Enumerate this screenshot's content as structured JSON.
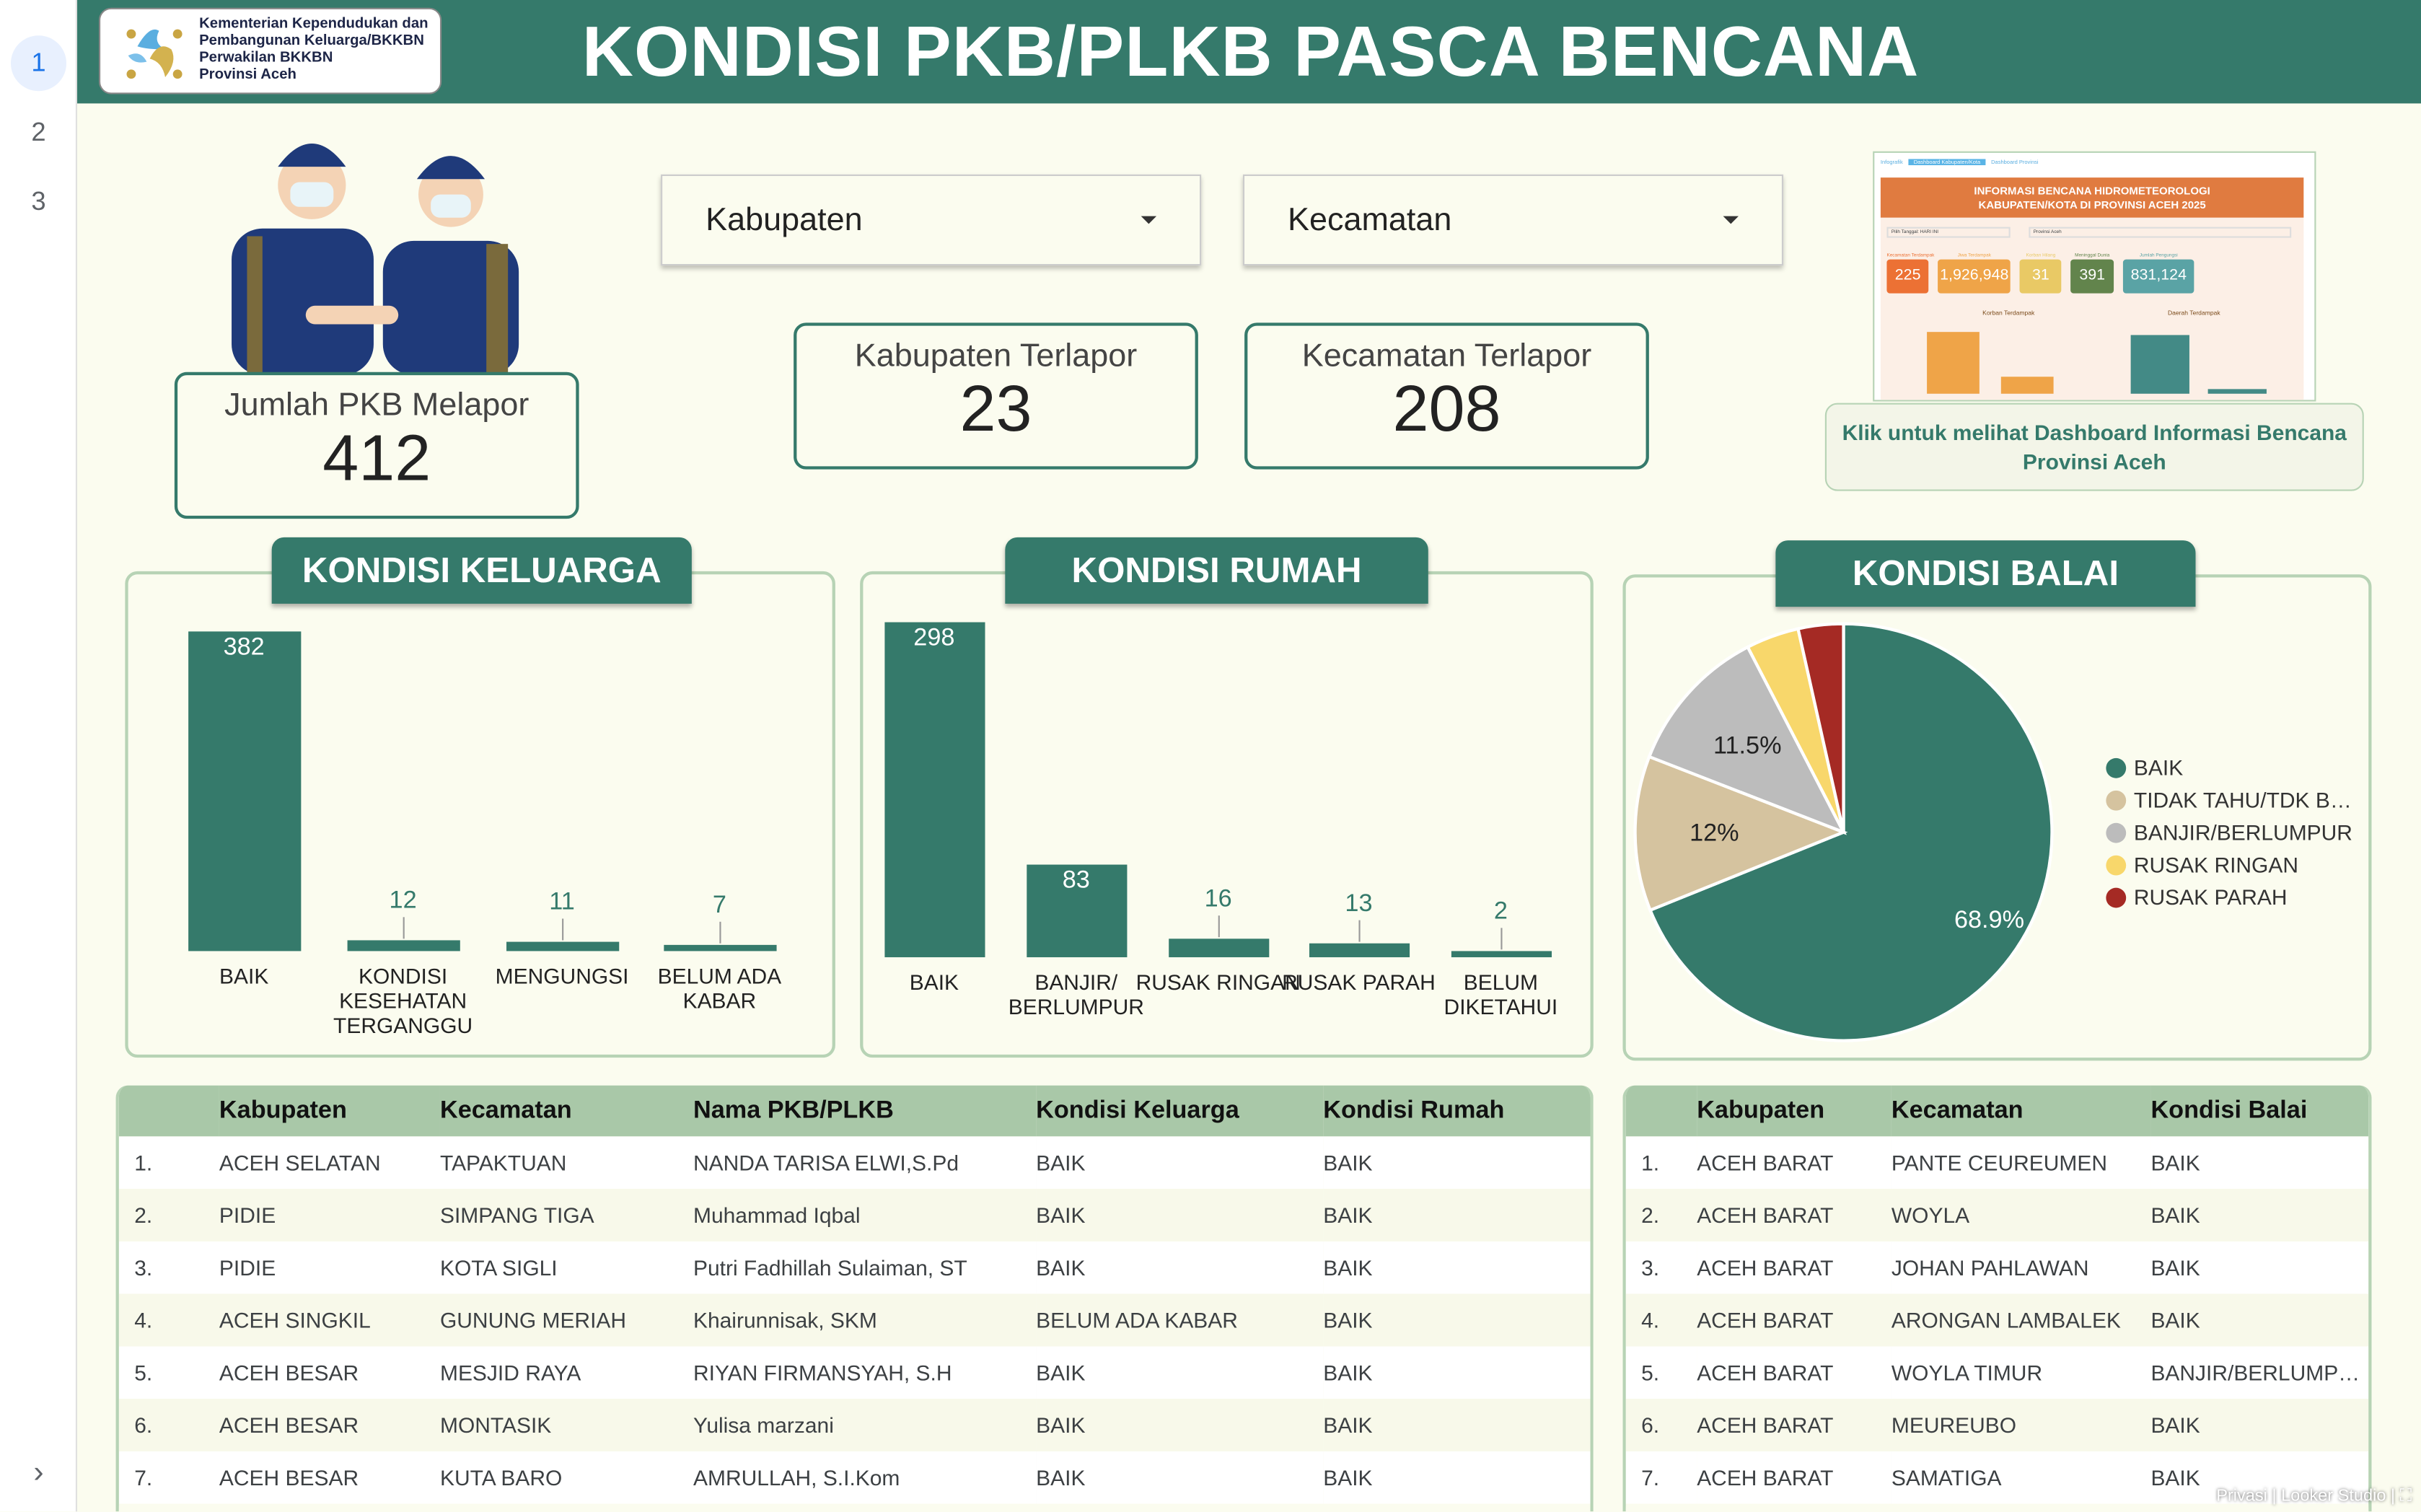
{
  "nav": {
    "pages": [
      "1",
      "2",
      "3"
    ],
    "active": "1",
    "next_icon": "chevron-right-icon"
  },
  "header": {
    "logo_text": [
      "Kementerian Kependudukan dan",
      "Pembangunan Keluarga/BKKBN",
      "Perwakilan BKKBN",
      "Provinsi Aceh"
    ],
    "title": "KONDISI PKB/PLKB PASCA BENCANA"
  },
  "filters": {
    "kabupaten": "Kabupaten",
    "kecamatan": "Kecamatan"
  },
  "stats": {
    "pkb": {
      "label": "Jumlah PKB Melapor",
      "value": "412"
    },
    "kab": {
      "label": "Kabupaten Terlapor",
      "value": "23"
    },
    "kec": {
      "label": "Kecamatan Terlapor",
      "value": "208"
    }
  },
  "thumbnail": {
    "tabs": [
      "Infografik",
      "Dashboard Kabupaten/Kota",
      "Dashboard Provinsi"
    ],
    "title1": "INFORMASI BENCANA HIDROMETEOROLOGI",
    "title2": "KABUPATEN/KOTA DI PROVINSI ACEH 2025",
    "filter1": "Pilih Tanggal: HARI INI",
    "filter2": "Provinsi Aceh",
    "kpis": [
      {
        "label": "Kecamatan Terdampak",
        "value": "225",
        "color": "#ec7134"
      },
      {
        "label": "Jiwa Terdampak",
        "value": "1,926,948",
        "color": "#efa448"
      },
      {
        "label": "Korban Hilang",
        "value": "31",
        "color": "#e9c965"
      },
      {
        "label": "Meninggal Dunia",
        "value": "391",
        "color": "#62844c"
      },
      {
        "label": "Jumlah Pengungsi",
        "value": "831,124",
        "color": "#5aa3a5"
      }
    ],
    "chart1": "Korban Terdampak",
    "chart2": "Daerah Terdampak"
  },
  "caption": {
    "line1": "Klik untuk melihat Dashboard Informasi Bencana",
    "line2": "Provinsi Aceh"
  },
  "colors": {
    "primary": "#357a6b",
    "header_row": "#a9c8a8",
    "background": "#fbfcef"
  },
  "chart_data": [
    {
      "type": "bar",
      "title": "KONDISI KELUARGA",
      "categories": [
        "BAIK",
        "KONDISI KESEHATAN TERGANGGU",
        "MENGUNGSI",
        "BELUM ADA KABAR"
      ],
      "values": [
        382,
        12,
        11,
        7
      ]
    },
    {
      "type": "bar",
      "title": "KONDISI RUMAH",
      "categories": [
        "BAIK",
        "BANJIR/ BERLUMPUR",
        "RUSAK RINGAN",
        "RUSAK PARAH",
        "BELUM DIKETAHUI"
      ],
      "values": [
        298,
        83,
        16,
        13,
        2
      ]
    },
    {
      "type": "pie",
      "title": "KONDISI BALAI",
      "legend": "right",
      "slices": [
        {
          "name": "BAIK",
          "value": 68.9,
          "label": "68.9%",
          "color": "#357a6b"
        },
        {
          "name": "TIDAK TAHU/TDK B…",
          "value": 12,
          "label": "12%",
          "color": "#d5c39f"
        },
        {
          "name": "BANJIR/BERLUMPUR",
          "value": 11.5,
          "label": "11.5%",
          "color": "#bcbcbc"
        },
        {
          "name": "RUSAK RINGAN",
          "value": 4.1,
          "label": "",
          "color": "#f8d76b"
        },
        {
          "name": "RUSAK PARAH",
          "value": 3.5,
          "label": "",
          "color": "#a52a24"
        }
      ]
    }
  ],
  "table_pkb": {
    "headers": [
      "",
      "Kabupaten",
      "Kecamatan",
      "Nama PKB/PLKB",
      "Kondisi Keluarga",
      "Kondisi Rumah"
    ],
    "rows": [
      [
        "1.",
        "ACEH SELATAN",
        "TAPAKTUAN",
        "NANDA TARISA ELWI,S.Pd",
        "BAIK",
        "BAIK"
      ],
      [
        "2.",
        "PIDIE",
        "SIMPANG TIGA",
        "Muhammad Iqbal",
        "BAIK",
        "BAIK"
      ],
      [
        "3.",
        "PIDIE",
        "KOTA SIGLI",
        "Putri Fadhillah Sulaiman, ST",
        "BAIK",
        "BAIK"
      ],
      [
        "4.",
        "ACEH SINGKIL",
        "GUNUNG MERIAH",
        "Khairunnisak, SKM",
        "BELUM ADA KABAR",
        "BAIK"
      ],
      [
        "5.",
        "ACEH BESAR",
        "MESJID RAYA",
        "RIYAN FIRMANSYAH, S.H",
        "BAIK",
        "BAIK"
      ],
      [
        "6.",
        "ACEH BESAR",
        "MONTASIK",
        "Yulisa marzani",
        "BAIK",
        "BAIK"
      ],
      [
        "7.",
        "ACEH BESAR",
        "KUTA BARO",
        "AMRULLAH, S.I.Kom",
        "BAIK",
        "BAIK"
      ]
    ]
  },
  "table_balai": {
    "headers": [
      "",
      "Kabupaten",
      "Kecamatan",
      "Kondisi Balai"
    ],
    "rows": [
      [
        "1.",
        "ACEH BARAT",
        "PANTE CEUREUMEN",
        "BAIK"
      ],
      [
        "2.",
        "ACEH BARAT",
        "WOYLA",
        "BAIK"
      ],
      [
        "3.",
        "ACEH BARAT",
        "JOHAN PAHLAWAN",
        "BAIK"
      ],
      [
        "4.",
        "ACEH BARAT",
        "ARONGAN LAMBALEK",
        "BAIK"
      ],
      [
        "5.",
        "ACEH BARAT",
        "WOYLA TIMUR",
        "BANJIR/BERLUMP…"
      ],
      [
        "6.",
        "ACEH BARAT",
        "MEUREUBO",
        "BAIK"
      ],
      [
        "7.",
        "ACEH BARAT",
        "SAMATIGA",
        "BAIK"
      ]
    ]
  },
  "footer": {
    "privacy": "Privasi",
    "brand": "Looker Studio"
  }
}
